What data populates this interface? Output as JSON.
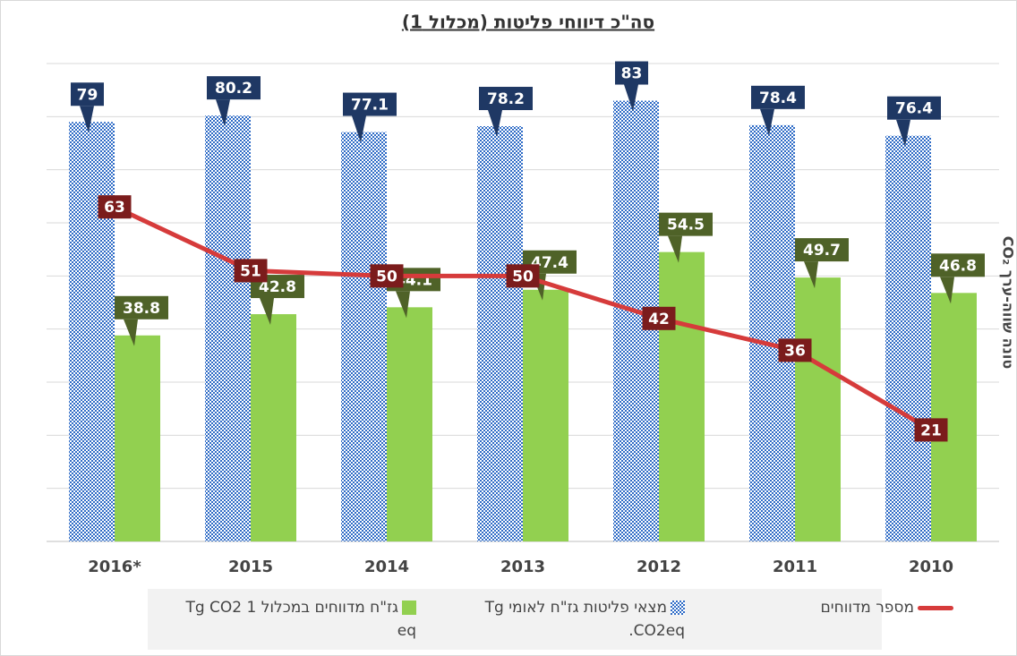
{
  "chart_data": {
    "type": "bar",
    "title": "סה\"כ דיווחי פליטות (מכלול 1)",
    "y_label": "טונה שווה-ערך CO₂",
    "categories": [
      "2016*",
      "2015",
      "2014",
      "2013",
      "2012",
      "2011",
      "2010"
    ],
    "series": [
      {
        "name": "מצאי פליטות גז\"ח לאומי Tg CO2eq.",
        "type": "bar",
        "color": "#2e6bc6",
        "label_color": "#1f3864",
        "values": [
          79,
          80.2,
          77.1,
          78.2,
          83,
          78.4,
          76.4
        ]
      },
      {
        "name": "גז\"ח מדווחים במכלול 1 Tg CO2 eq",
        "type": "bar",
        "color": "#92d050",
        "label_color": "#4f6228",
        "values": [
          38.8,
          42.8,
          44.1,
          47.4,
          54.5,
          49.7,
          46.8
        ]
      },
      {
        "name": "מספר מדווחים",
        "type": "line",
        "color": "#d63b3b",
        "label_color": "#7b1c1c",
        "values": [
          63,
          51,
          50,
          50,
          42,
          36,
          21
        ]
      }
    ],
    "ylim": [
      0,
      90
    ],
    "yticks": [
      0,
      10,
      20,
      30,
      40,
      50,
      60,
      70,
      80,
      90
    ],
    "grid": true
  }
}
